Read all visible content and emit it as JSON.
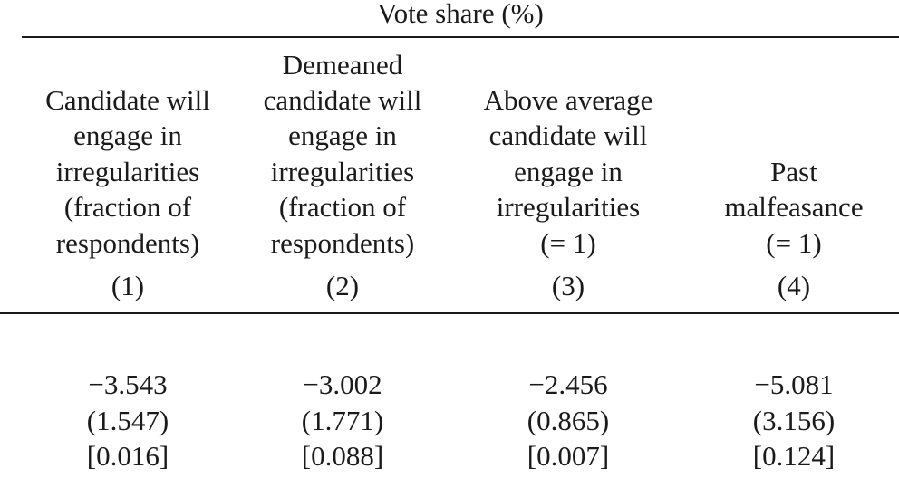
{
  "header": {
    "title": "Vote share (%)"
  },
  "columns": [
    {
      "label_lines": [
        "Candidate will",
        "engage in",
        "irregularities",
        "(fraction of",
        "respondents)"
      ],
      "number": "(1)",
      "estimate": "−3.543",
      "std_error": "(1.547)",
      "p_value": "[0.016]"
    },
    {
      "label_lines": [
        "Demeaned",
        "candidate will",
        "engage in",
        "irregularities",
        "(fraction of",
        "respondents)"
      ],
      "number": "(2)",
      "estimate": "−3.002",
      "std_error": "(1.771)",
      "p_value": "[0.088]"
    },
    {
      "label_lines": [
        "Above average",
        "candidate will",
        "engage in",
        "irregularities",
        "(=  1)"
      ],
      "number": "(3)",
      "estimate": "−2.456",
      "std_error": "(0.865)",
      "p_value": "[0.007]"
    },
    {
      "label_lines": [
        "Past",
        "malfeasance",
        "(=  1)"
      ],
      "number": "(4)",
      "estimate": "−5.081",
      "std_error": "(3.156)",
      "p_value": "[0.124]"
    }
  ]
}
